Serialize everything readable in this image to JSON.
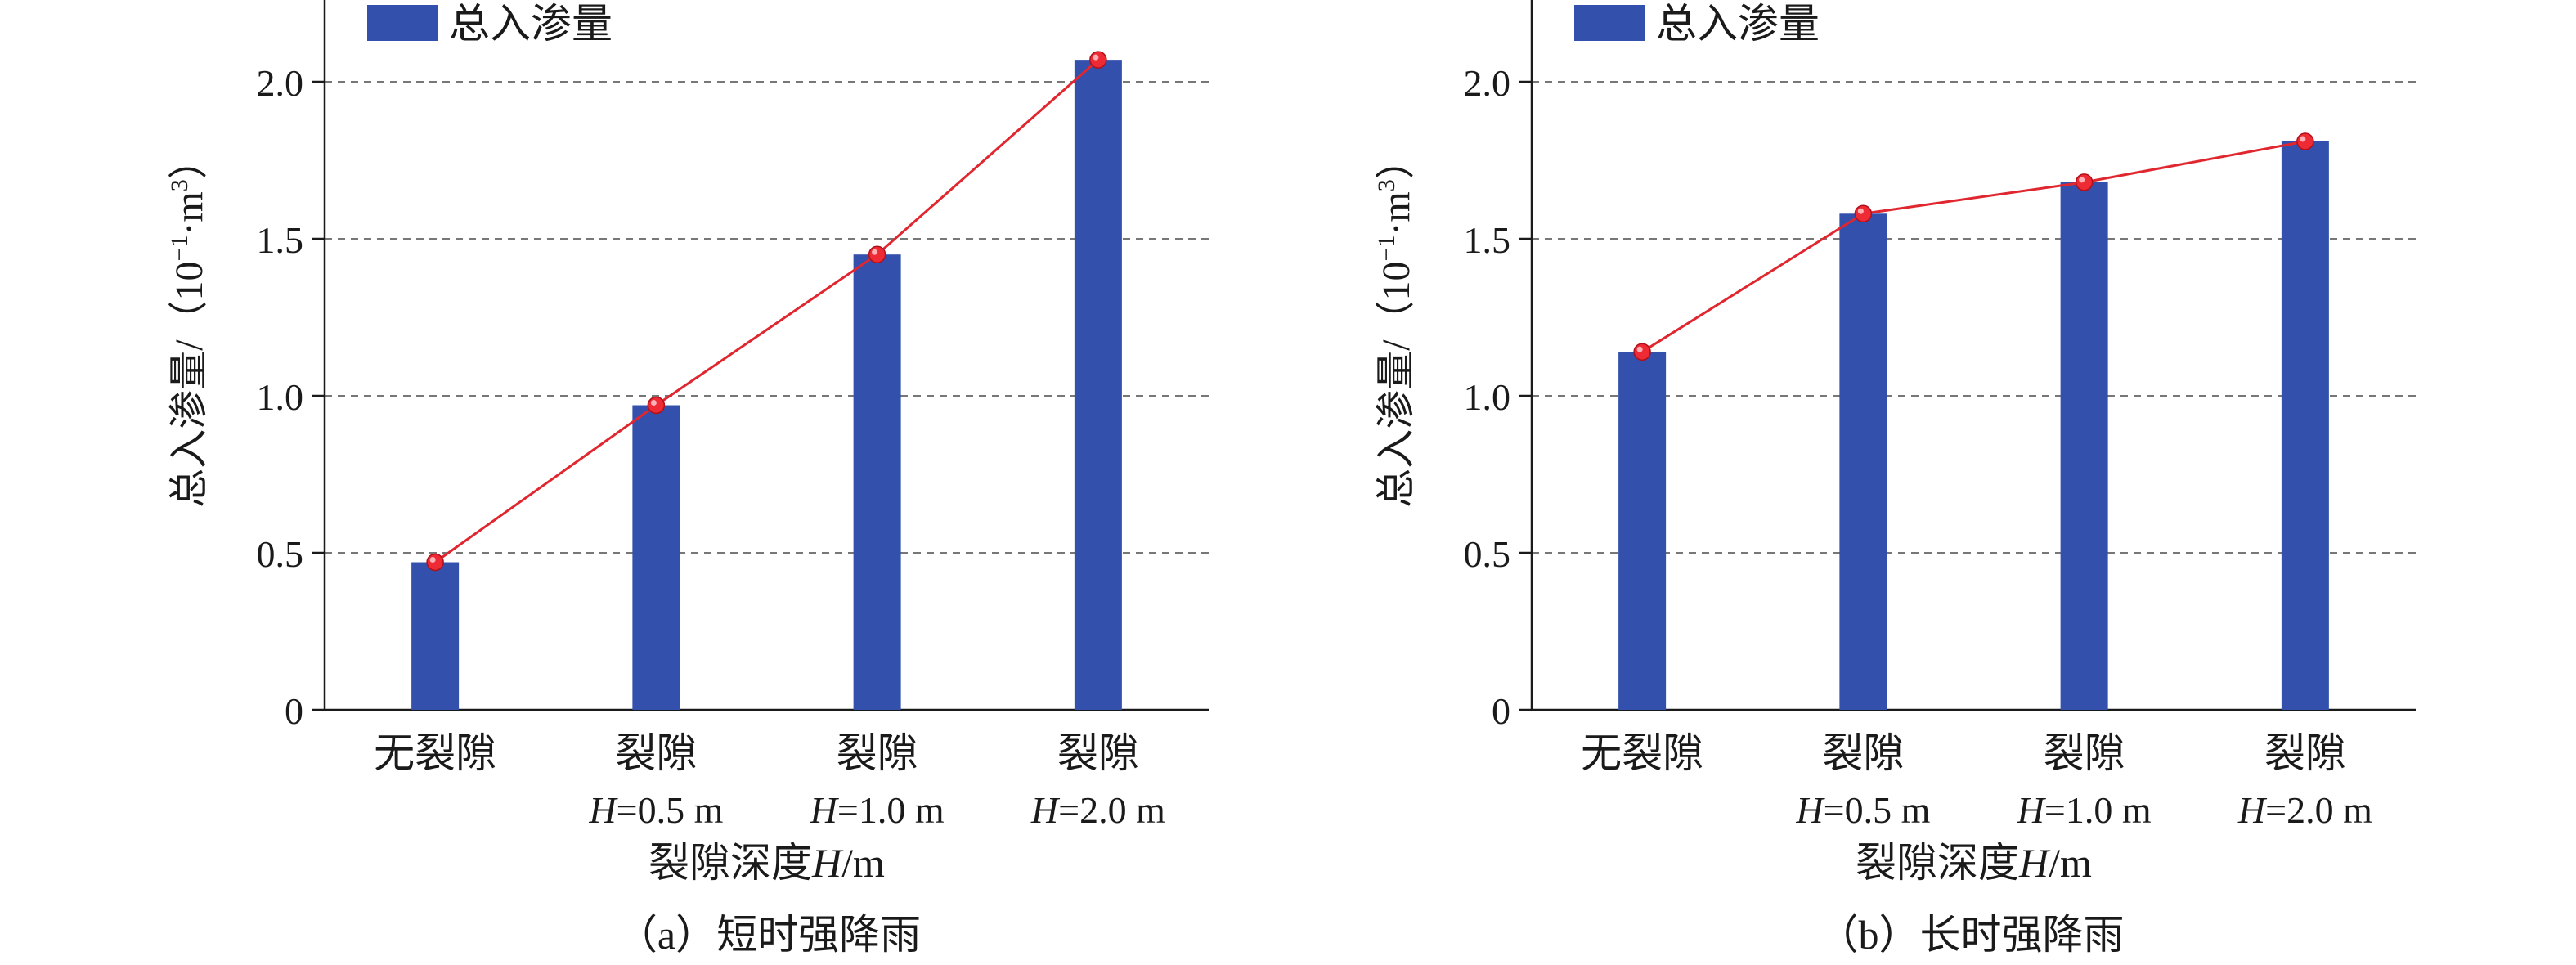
{
  "colors": {
    "bar": "#3350ad",
    "line": "#e0262e",
    "marker": "#ee2a34",
    "grid": "#777777",
    "axis": "#1a1a1a"
  },
  "chart_data": [
    {
      "type": "bar",
      "panel_caption": "（a）短时强降雨",
      "legend": "总入渗量",
      "legend_position": "top-left",
      "categories": [
        {
          "line1": "无裂隙",
          "var": "",
          "line2": ""
        },
        {
          "line1": "裂隙",
          "var": "H",
          "line2": "=0.5 m"
        },
        {
          "line1": "裂隙",
          "var": "H",
          "line2": "=1.0 m"
        },
        {
          "line1": "裂隙",
          "var": "H",
          "line2": "=2.0 m"
        }
      ],
      "values": [
        0.47,
        0.97,
        1.45,
        2.07
      ],
      "line_overlay": true,
      "xlabel": {
        "prefix": "裂隙深度",
        "var": "H",
        "suffix": "/m"
      },
      "ylabel": {
        "main": "总入渗量/（10",
        "exp1": "−1",
        "mid": "·m",
        "exp2": "3",
        "end": "）"
      },
      "yticks": [
        "0",
        "0.5",
        "1.0",
        "1.5",
        "2.0"
      ],
      "ylim": [
        0,
        2.25
      ],
      "grid": "horizontal dashed"
    },
    {
      "type": "bar",
      "panel_caption": "（b）长时强降雨",
      "legend": "总入渗量",
      "legend_position": "top-left",
      "categories": [
        {
          "line1": "无裂隙",
          "var": "",
          "line2": ""
        },
        {
          "line1": "裂隙",
          "var": "H",
          "line2": "=0.5 m"
        },
        {
          "line1": "裂隙",
          "var": "H",
          "line2": "=1.0 m"
        },
        {
          "line1": "裂隙",
          "var": "H",
          "line2": "=2.0 m"
        }
      ],
      "values": [
        1.14,
        1.58,
        1.68,
        1.81
      ],
      "line_overlay": true,
      "xlabel": {
        "prefix": "裂隙深度",
        "var": "H",
        "suffix": "/m"
      },
      "ylabel": {
        "main": "总入渗量/（10",
        "exp1": "−1",
        "mid": "·m",
        "exp2": "3",
        "end": "）"
      },
      "yticks": [
        "0",
        "0.5",
        "1.0",
        "1.5",
        "2.0"
      ],
      "ylim": [
        0,
        2.25
      ],
      "grid": "horizontal dashed"
    }
  ]
}
